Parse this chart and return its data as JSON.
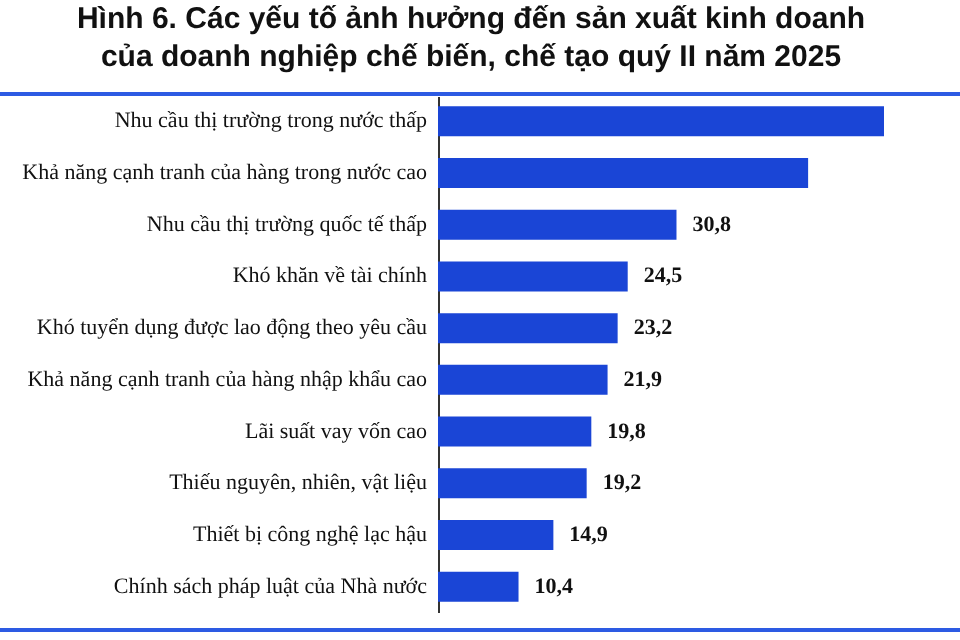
{
  "chart_data": {
    "type": "bar",
    "orientation": "horizontal",
    "title": "Hình 6. Các yếu tố ảnh hưởng đến sản xuất kinh doanh\ncủa doanh nghiệp chế biến, chế tạo quý II năm 2025",
    "categories": [
      "Nhu cầu thị trường trong nước thấp",
      "Khả năng cạnh tranh của hàng trong nước cao",
      "Nhu cầu thị trường quốc tế thấp",
      "Khó khăn về tài chính",
      "Khó tuyển dụng được lao động theo yêu cầu",
      "Khả năng cạnh tranh của hàng nhập khẩu cao",
      "Lãi suất vay vốn cao",
      "Thiếu nguyên, nhiên, vật liệu",
      "Thiết bị công nghệ lạc hậu",
      "Chính sách pháp luật của Nhà nước"
    ],
    "values": [
      57.6,
      47.8,
      30.8,
      24.5,
      23.2,
      21.9,
      19.8,
      19.2,
      14.9,
      10.4
    ],
    "value_labels": [
      null,
      null,
      "30,8",
      "24,5",
      "23,2",
      "21,9",
      "19,8",
      "19,2",
      "14,9",
      "10,4"
    ],
    "color": "#1a45d6"
  }
}
